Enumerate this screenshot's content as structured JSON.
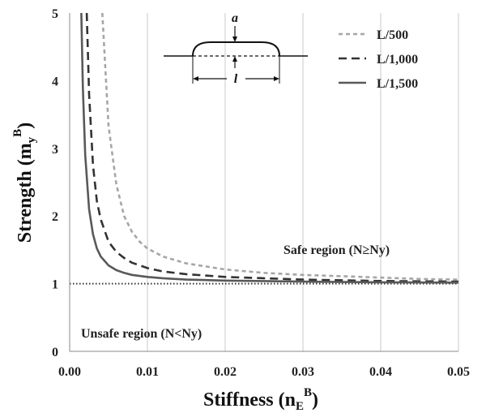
{
  "chart_data": {
    "type": "line",
    "xlabel": "Stiffness (n",
    "xlabel_sub": "E",
    "xlabel_sup": "B",
    "xlabel_end": ")",
    "ylabel": "Strength (m",
    "ylabel_sub": "y",
    "ylabel_sup": "B",
    "ylabel_end": ")",
    "xlim": [
      0,
      0.05
    ],
    "ylim": [
      0,
      5
    ],
    "x_ticks": [
      0,
      0.01,
      0.02,
      0.03,
      0.04,
      0.05
    ],
    "x_tick_labels": [
      "0.00",
      "0.01",
      "0.02",
      "0.03",
      "0.04",
      "0.05"
    ],
    "y_ticks": [
      0,
      1,
      2,
      3,
      4,
      5
    ],
    "y_tick_labels": [
      "0",
      "1",
      "2",
      "3",
      "4",
      "5"
    ],
    "gridlines": "vertical",
    "legend_position": "top-right",
    "series": [
      {
        "name": "L/500",
        "color": "#a6a6a6",
        "style": "dashed-short",
        "x": [
          0.0042,
          0.005,
          0.006,
          0.007,
          0.008,
          0.009,
          0.01,
          0.012,
          0.015,
          0.02,
          0.025,
          0.03,
          0.035,
          0.04,
          0.045,
          0.05
        ],
        "y": [
          5.0,
          3.33,
          2.47,
          2.0,
          1.77,
          1.62,
          1.52,
          1.4,
          1.3,
          1.21,
          1.16,
          1.13,
          1.11,
          1.09,
          1.07,
          1.06
        ]
      },
      {
        "name": "L/1,000",
        "color": "#333333",
        "style": "dashed-long",
        "x": [
          0.0022,
          0.0025,
          0.003,
          0.0035,
          0.004,
          0.005,
          0.006,
          0.007,
          0.008,
          0.01,
          0.012,
          0.015,
          0.02,
          0.025,
          0.03,
          0.04,
          0.05
        ],
        "y": [
          5.0,
          3.8,
          2.75,
          2.22,
          1.95,
          1.62,
          1.47,
          1.38,
          1.31,
          1.23,
          1.18,
          1.14,
          1.1,
          1.08,
          1.06,
          1.04,
          1.03
        ]
      },
      {
        "name": "L/1,500",
        "color": "#595959",
        "style": "solid",
        "x": [
          0.0015,
          0.0017,
          0.002,
          0.0025,
          0.003,
          0.0035,
          0.004,
          0.005,
          0.006,
          0.007,
          0.008,
          0.01,
          0.012,
          0.015,
          0.02,
          0.03,
          0.04,
          0.05
        ],
        "y": [
          5.0,
          3.9,
          2.9,
          2.1,
          1.73,
          1.52,
          1.4,
          1.27,
          1.2,
          1.16,
          1.13,
          1.1,
          1.08,
          1.06,
          1.045,
          1.03,
          1.02,
          1.015
        ]
      }
    ],
    "reference_line": {
      "y": 1,
      "style": "dotted",
      "color": "#333333"
    },
    "annotations": {
      "safe": "Safe  region (N≥Ny)",
      "unsafe": "Unsafe  region (N<Ny)"
    },
    "inset": {
      "label_a": "a",
      "label_l": "l"
    }
  }
}
